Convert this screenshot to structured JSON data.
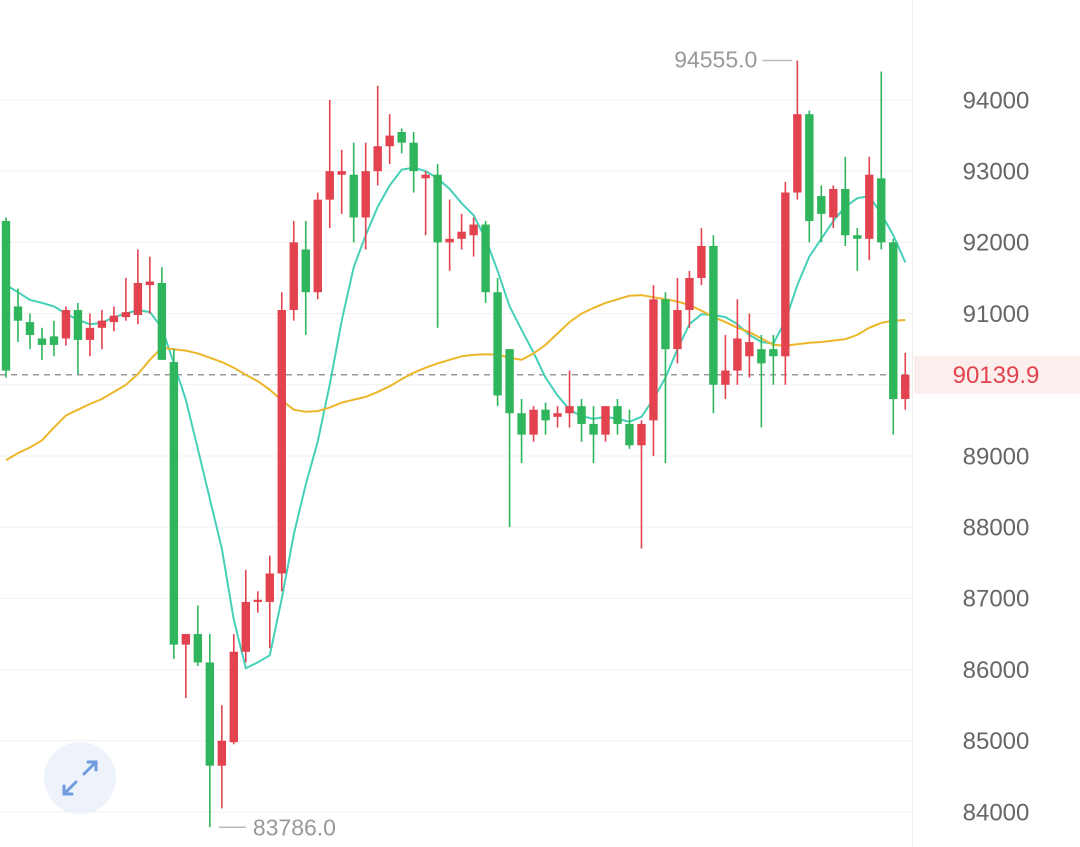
{
  "chart_data": {
    "type": "candlestick",
    "open": [
      92300,
      91100,
      90880,
      90650,
      90680,
      90650,
      91050,
      90630,
      90800,
      90880,
      90950,
      90980,
      91400,
      91430,
      90320,
      86350,
      86500,
      86100,
      84650,
      84980,
      86250,
      86950,
      86950,
      87350,
      91050,
      91900,
      91300,
      92600,
      92950,
      92950,
      92350,
      93000,
      93350,
      93550,
      93400,
      92900,
      92950,
      92000,
      92050,
      92100,
      92250,
      91300,
      90500,
      89600,
      89300,
      89650,
      89550,
      89600,
      89700,
      89450,
      89300,
      89700,
      89450,
      89150,
      89500,
      91200,
      90500,
      91050,
      91500,
      91950,
      90000,
      90200,
      90400,
      90500,
      90500,
      90400,
      92700,
      93800,
      92650,
      92350,
      92750,
      92100,
      92050,
      92900,
      92000,
      89800
    ],
    "high": [
      92350,
      91350,
      91000,
      90800,
      90900,
      91100,
      91150,
      91000,
      91050,
      91100,
      91500,
      91900,
      91800,
      91650,
      90500,
      86500,
      86900,
      86500,
      85500,
      86500,
      87400,
      87100,
      87600,
      91300,
      92300,
      92300,
      92700,
      94000,
      93300,
      93400,
      93400,
      94200,
      93800,
      93600,
      93550,
      93000,
      93100,
      92600,
      92400,
      92350,
      92300,
      91500,
      90500,
      89800,
      89700,
      89750,
      89700,
      90200,
      89800,
      89700,
      89700,
      89800,
      89650,
      89500,
      91400,
      91300,
      91500,
      91600,
      92200,
      92100,
      90700,
      91200,
      91000,
      90700,
      90700,
      92850,
      94555,
      93850,
      92800,
      92800,
      93200,
      92200,
      93200,
      94400,
      92050,
      90450
    ],
    "low": [
      90100,
      90600,
      90500,
      90350,
      90400,
      90550,
      90150,
      90400,
      90500,
      90750,
      90900,
      90850,
      91000,
      90350,
      86150,
      85600,
      86050,
      83786,
      84050,
      84950,
      86100,
      86800,
      86300,
      87100,
      90900,
      90700,
      91200,
      92200,
      92400,
      92000,
      91900,
      92800,
      93100,
      93250,
      92700,
      92100,
      90800,
      91600,
      91900,
      91800,
      91150,
      89700,
      88000,
      88900,
      89200,
      89300,
      89400,
      89400,
      89200,
      88900,
      89200,
      89300,
      89100,
      87700,
      89000,
      88900,
      90300,
      90800,
      91400,
      89600,
      89800,
      90000,
      90100,
      89400,
      90000,
      90000,
      92600,
      92000,
      92000,
      92200,
      91950,
      91600,
      91750,
      91900,
      89300,
      89650
    ],
    "close": [
      90200,
      90900,
      90700,
      90560,
      90560,
      91050,
      90630,
      90800,
      90900,
      90970,
      91020,
      91430,
      91450,
      90350,
      86350,
      86500,
      86100,
      84650,
      85000,
      86250,
      86950,
      86980,
      87350,
      91050,
      92000,
      91300,
      92600,
      93000,
      93000,
      92350,
      93000,
      93350,
      93500,
      93400,
      93000,
      92950,
      92000,
      92050,
      92150,
      92250,
      91300,
      89850,
      89600,
      89300,
      89650,
      89500,
      89600,
      89700,
      89450,
      89300,
      89700,
      89450,
      89150,
      89450,
      91200,
      90500,
      91050,
      91500,
      91950,
      90000,
      90200,
      90650,
      90600,
      90300,
      90400,
      92700,
      93800,
      92300,
      92400,
      92750,
      92100,
      92050,
      92950,
      92000,
      89800,
      90140
    ],
    "up_color": "#e2434f",
    "down_color": "#2fb55b",
    "ma_lines": [
      {
        "color": "#45d0b8",
        "values": [
          91400,
          91300,
          91190,
          91150,
          91100,
          91000,
          90910,
          90850,
          90870,
          90950,
          91000,
          91050,
          91020,
          90800,
          90300,
          89790,
          89100,
          88400,
          87700,
          86700,
          86020,
          86100,
          86200,
          87000,
          87900,
          88600,
          89200,
          90000,
          90900,
          91650,
          92100,
          92500,
          92800,
          93020,
          93050,
          93000,
          92900,
          92750,
          92550,
          92380,
          92050,
          91600,
          91100,
          90770,
          90450,
          90100,
          89850,
          89650,
          89560,
          89520,
          89550,
          89520,
          89480,
          89550,
          89800,
          90100,
          90500,
          90850,
          90990,
          90980,
          90950,
          90850,
          90700,
          90600,
          90580,
          90900,
          91400,
          91800,
          92050,
          92300,
          92500,
          92620,
          92650,
          92400,
          92100,
          91720
        ]
      },
      {
        "color": "#ecb628",
        "values": [
          88940,
          89040,
          89120,
          89220,
          89400,
          89570,
          89650,
          89730,
          89800,
          89900,
          90000,
          90150,
          90350,
          90520,
          90500,
          90480,
          90440,
          90380,
          90320,
          90240,
          90140,
          90050,
          89930,
          89780,
          89650,
          89620,
          89630,
          89680,
          89750,
          89790,
          89830,
          89900,
          89980,
          90080,
          90170,
          90240,
          90300,
          90350,
          90400,
          90420,
          90430,
          90420,
          90380,
          90350,
          90440,
          90560,
          90720,
          90880,
          91000,
          91080,
          91150,
          91200,
          91250,
          91260,
          91230,
          91200,
          91170,
          91120,
          91040,
          90950,
          90880,
          90800,
          90740,
          90650,
          90560,
          90550,
          90570,
          90590,
          90600,
          90620,
          90640,
          90700,
          90800,
          90870,
          90900,
          90910
        ]
      }
    ],
    "ylim": [
      83508,
      95404
    ],
    "yticks": [
      84000,
      85000,
      86000,
      87000,
      88000,
      89000,
      90000,
      91000,
      92000,
      93000,
      94000
    ],
    "grid": true,
    "last_price": 90139.9,
    "high_marker": {
      "value": 94555,
      "label": "94555.0"
    },
    "low_marker": {
      "value": 83786,
      "label": "83786.0"
    }
  }
}
